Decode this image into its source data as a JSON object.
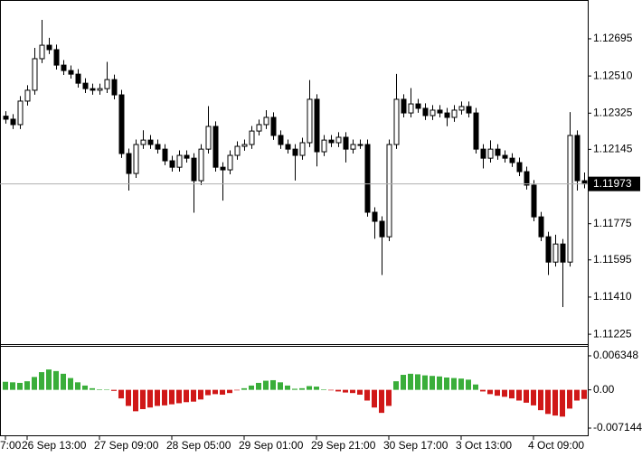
{
  "chart_data": [
    {
      "type": "candlestick",
      "categories": [
        "7:00",
        null,
        null,
        "26 Sep 13:00",
        null,
        null,
        null,
        null,
        null,
        null,
        null,
        null,
        null,
        "27 Sep 09:00",
        null,
        null,
        null,
        null,
        null,
        null,
        null,
        null,
        null,
        "28 Sep 05:00",
        null,
        null,
        null,
        null,
        null,
        null,
        null,
        null,
        null,
        "29 Sep 01:00",
        null,
        null,
        null,
        null,
        null,
        null,
        null,
        null,
        null,
        "29 Sep 21:00",
        null,
        null,
        null,
        null,
        null,
        null,
        null,
        null,
        null,
        "30 Sep 17:00",
        null,
        null,
        null,
        null,
        null,
        null,
        null,
        null,
        null,
        "3 Oct 13:00",
        null,
        null,
        null,
        null,
        null,
        null,
        null,
        null,
        null,
        "4 Oct 09:00",
        null,
        null,
        null,
        null,
        null,
        null,
        null
      ],
      "open": [
        1.1231,
        1.12295,
        1.12268,
        1.12385,
        1.12439,
        1.12596,
        1.12663,
        1.12641,
        1.12564,
        1.12537,
        1.12519,
        1.12474,
        1.12447,
        1.12439,
        1.12447,
        1.12492,
        1.12416,
        1.12124,
        1.12025,
        1.12169,
        1.12191,
        1.12169,
        1.12146,
        1.12088,
        1.12056,
        1.12115,
        1.12101,
        1.11989,
        1.12146,
        1.12259,
        1.12056,
        1.12043,
        1.12115,
        1.1216,
        1.12169,
        1.12236,
        1.12268,
        1.12304,
        1.12214,
        1.12169,
        1.12146,
        1.12115,
        1.12178,
        1.12394,
        1.12133,
        1.12191,
        1.12178,
        1.12205,
        1.12146,
        1.12169,
        1.12169,
        1.11832,
        1.11787,
        1.1171,
        1.12169,
        1.12394,
        1.12326,
        1.12371,
        1.12349,
        1.12313,
        1.1234,
        1.12326,
        1.12304,
        1.1234,
        1.12358,
        1.12326,
        1.12146,
        1.12101,
        1.12146,
        1.12115,
        1.12101,
        1.12079,
        1.12034,
        1.11967,
        1.11809,
        1.1171,
        1.11584,
        1.11674,
        1.11584,
        1.12214,
        1.11989
      ],
      "high": [
        1.12335,
        1.1232,
        1.1241,
        1.12464,
        1.1265,
        1.12789,
        1.127,
        1.12666,
        1.12589,
        1.12562,
        1.12544,
        1.12499,
        1.12472,
        1.12472,
        1.1258,
        1.12517,
        1.12441,
        1.12149,
        1.12194,
        1.1224,
        1.12216,
        1.12194,
        1.12171,
        1.12113,
        1.1214,
        1.1214,
        1.12126,
        1.12171,
        1.1236,
        1.12284,
        1.12081,
        1.1214,
        1.12185,
        1.12194,
        1.12261,
        1.12293,
        1.1234,
        1.12329,
        1.12239,
        1.12194,
        1.12171,
        1.12203,
        1.1249,
        1.12419,
        1.12216,
        1.12216,
        1.1223,
        1.1223,
        1.12194,
        1.12194,
        1.12194,
        1.11857,
        1.11812,
        1.12194,
        1.1252,
        1.12419,
        1.1245,
        1.12396,
        1.12374,
        1.12365,
        1.12365,
        1.12351,
        1.12365,
        1.12383,
        1.12383,
        1.12351,
        1.12171,
        1.1219,
        1.12171,
        1.1214,
        1.12126,
        1.12104,
        1.12059,
        1.11992,
        1.11834,
        1.11735,
        1.1172,
        1.11699,
        1.1233,
        1.12239,
        1.1203
      ],
      "low": [
        1.12273,
        1.12246,
        1.12246,
        1.12363,
        1.12417,
        1.12574,
        1.12619,
        1.12542,
        1.12515,
        1.12497,
        1.12452,
        1.12425,
        1.12417,
        1.12417,
        1.12425,
        1.12394,
        1.12102,
        1.1194,
        1.12003,
        1.12147,
        1.12147,
        1.12124,
        1.12066,
        1.12034,
        1.12034,
        1.12079,
        1.1183,
        1.11967,
        1.12124,
        1.12034,
        1.1189,
        1.12021,
        1.12093,
        1.12138,
        1.12147,
        1.12214,
        1.12246,
        1.12192,
        1.12147,
        1.12124,
        1.1199,
        1.12093,
        1.12156,
        1.1206,
        1.12111,
        1.12156,
        1.12156,
        1.1208,
        1.12124,
        1.12147,
        1.1181,
        1.117,
        1.1152,
        1.11688,
        1.12147,
        1.12304,
        1.12304,
        1.12327,
        1.12291,
        1.12291,
        1.12304,
        1.1226,
        1.12282,
        1.12318,
        1.12304,
        1.12124,
        1.1205,
        1.12079,
        1.12093,
        1.12079,
        1.12057,
        1.12012,
        1.11945,
        1.11787,
        1.11688,
        1.1152,
        1.11562,
        1.1136,
        1.11562,
        1.1194,
        1.11951
      ],
      "close": [
        1.12295,
        1.12268,
        1.12385,
        1.12439,
        1.12596,
        1.12663,
        1.12641,
        1.12564,
        1.12537,
        1.12519,
        1.12474,
        1.12447,
        1.12439,
        1.12447,
        1.12492,
        1.12416,
        1.12124,
        1.12025,
        1.12169,
        1.12191,
        1.12169,
        1.12146,
        1.12088,
        1.12056,
        1.12115,
        1.12101,
        1.11989,
        1.12146,
        1.12259,
        1.12056,
        1.12043,
        1.12115,
        1.1216,
        1.12169,
        1.12236,
        1.12268,
        1.12304,
        1.12214,
        1.12169,
        1.12146,
        1.12115,
        1.12178,
        1.12394,
        1.12133,
        1.12191,
        1.12178,
        1.12205,
        1.12146,
        1.12169,
        1.12169,
        1.11832,
        1.11787,
        1.1171,
        1.12169,
        1.12394,
        1.12326,
        1.12371,
        1.12349,
        1.12313,
        1.1234,
        1.12326,
        1.12304,
        1.1234,
        1.12358,
        1.12326,
        1.12146,
        1.12101,
        1.12146,
        1.12115,
        1.12101,
        1.12079,
        1.12034,
        1.11967,
        1.11809,
        1.1171,
        1.11584,
        1.11674,
        1.11584,
        1.12214,
        1.11989,
        1.11973
      ],
      "color": "#000000",
      "ylim": [
        1.11176,
        1.12888
      ],
      "yticks": [
        1.12695,
        {
          "value": 1.1251,
          "label": "1.12510"
        },
        1.12325,
        1.12145,
        1.11775,
        1.11595,
        {
          "value": 1.1141,
          "label": "1.11410"
        },
        1.11225
      ]
    },
    {
      "type": "bar",
      "values": [
        0.0015,
        0.0014,
        0.0013,
        0.0016,
        0.0024,
        0.0033,
        0.0038,
        0.0035,
        0.003,
        0.0022,
        0.0014,
        0.0008,
        0.0003,
        0.0001,
        5e-05,
        -0.0002,
        -0.0016,
        -0.003,
        -0.004,
        -0.0036,
        -0.0033,
        -0.003,
        -0.0029,
        -0.0027,
        -0.0025,
        -0.0023,
        -0.0022,
        -0.0018,
        -0.001,
        -0.0008,
        -0.0009,
        -0.0006,
        -0.0001,
        0.0003,
        0.0008,
        0.0013,
        0.0017,
        0.0018,
        0.0014,
        0.0008,
        0.0002,
        0.0003,
        0.0007,
        0.0006,
        0.0001,
        -0.0001,
        -0.0003,
        -0.0005,
        -0.0006,
        -0.0009,
        -0.002,
        -0.0033,
        -0.0043,
        -0.003,
        0.0016,
        0.0028,
        0.003,
        0.0029,
        0.0027,
        0.0026,
        0.0025,
        0.0023,
        0.0022,
        0.0021,
        0.0019,
        0.001,
        -0.0003,
        -0.0008,
        -0.0011,
        -0.0013,
        -0.0016,
        -0.002,
        -0.0024,
        -0.0029,
        -0.0038,
        -0.0045,
        -0.0048,
        -0.005,
        -0.0035,
        -0.002,
        -0.0017
      ],
      "positive_color": "#3aae3a",
      "negative_color": "#d01818",
      "ylim": [
        -0.00849,
        0.00803
      ],
      "yticks": [
        0.006348,
        {
          "value": 0,
          "label": "0.00"
        },
        -0.007144
      ]
    }
  ]
}
